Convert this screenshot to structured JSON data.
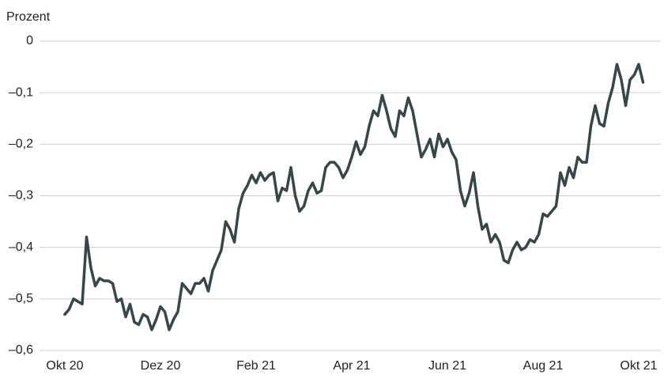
{
  "chart_data": {
    "type": "line",
    "y_label": "Prozent",
    "categories": [
      "Okt 20",
      null,
      null,
      null,
      null,
      null,
      null,
      null,
      null,
      null,
      null,
      null,
      null,
      null,
      null,
      null,
      null,
      null,
      null,
      null,
      null,
      null,
      "Dez 20",
      null,
      null,
      null,
      null,
      null,
      null,
      null,
      null,
      null,
      null,
      null,
      null,
      null,
      null,
      null,
      null,
      null,
      null,
      null,
      null,
      null,
      "Feb 21",
      null,
      null,
      null,
      null,
      null,
      null,
      null,
      null,
      null,
      null,
      null,
      null,
      null,
      null,
      null,
      null,
      null,
      null,
      null,
      null,
      null,
      "Apr 21",
      null,
      null,
      null,
      null,
      null,
      null,
      null,
      null,
      null,
      null,
      null,
      null,
      null,
      null,
      null,
      null,
      null,
      null,
      null,
      null,
      null,
      "Jun 21",
      null,
      null,
      null,
      null,
      null,
      null,
      null,
      null,
      null,
      null,
      null,
      null,
      null,
      null,
      null,
      null,
      null,
      null,
      null,
      null,
      null,
      "Aug 21",
      null,
      null,
      null,
      null,
      null,
      null,
      null,
      null,
      null,
      null,
      null,
      null,
      null,
      null,
      null,
      null,
      null,
      null,
      null,
      null,
      null,
      "Okt 21",
      null
    ],
    "series": [
      {
        "color": "#36474a",
        "values": [
          -0.53,
          -0.52,
          -0.5,
          -0.505,
          -0.51,
          -0.38,
          -0.44,
          -0.475,
          -0.46,
          -0.465,
          -0.465,
          -0.47,
          -0.505,
          -0.5,
          -0.535,
          -0.51,
          -0.545,
          -0.55,
          -0.53,
          -0.535,
          -0.56,
          -0.54,
          -0.515,
          -0.525,
          -0.56,
          -0.54,
          -0.525,
          -0.47,
          -0.48,
          -0.49,
          -0.47,
          -0.47,
          -0.46,
          -0.485,
          -0.445,
          -0.425,
          -0.405,
          -0.35,
          -0.365,
          -0.39,
          -0.325,
          -0.295,
          -0.28,
          -0.26,
          -0.275,
          -0.255,
          -0.27,
          -0.26,
          -0.255,
          -0.31,
          -0.285,
          -0.29,
          -0.245,
          -0.3,
          -0.33,
          -0.32,
          -0.29,
          -0.275,
          -0.295,
          -0.29,
          -0.245,
          -0.235,
          -0.235,
          -0.245,
          -0.265,
          -0.25,
          -0.225,
          -0.195,
          -0.22,
          -0.205,
          -0.165,
          -0.135,
          -0.145,
          -0.105,
          -0.135,
          -0.17,
          -0.185,
          -0.135,
          -0.145,
          -0.11,
          -0.135,
          -0.18,
          -0.225,
          -0.21,
          -0.19,
          -0.225,
          -0.18,
          -0.205,
          -0.19,
          -0.215,
          -0.23,
          -0.29,
          -0.32,
          -0.295,
          -0.255,
          -0.32,
          -0.365,
          -0.355,
          -0.39,
          -0.375,
          -0.39,
          -0.425,
          -0.43,
          -0.405,
          -0.39,
          -0.405,
          -0.4,
          -0.385,
          -0.39,
          -0.375,
          -0.335,
          -0.34,
          -0.33,
          -0.32,
          -0.255,
          -0.28,
          -0.245,
          -0.265,
          -0.225,
          -0.235,
          -0.235,
          -0.165,
          -0.125,
          -0.16,
          -0.165,
          -0.12,
          -0.09,
          -0.045,
          -0.075,
          -0.125,
          -0.075,
          -0.065,
          -0.045,
          -0.08
        ]
      }
    ],
    "ylim": [
      -0.6,
      0
    ],
    "yticks": [
      0,
      {
        "value": -0.1,
        "label": "–0,1"
      },
      {
        "value": -0.2,
        "label": "–0,2"
      },
      {
        "value": -0.3,
        "label": "–0,3"
      },
      {
        "value": -0.4,
        "label": "–0,4"
      },
      {
        "value": -0.5,
        "label": "–0,5"
      },
      {
        "value": -0.6,
        "label": "–0,6"
      }
    ],
    "grid": true
  }
}
